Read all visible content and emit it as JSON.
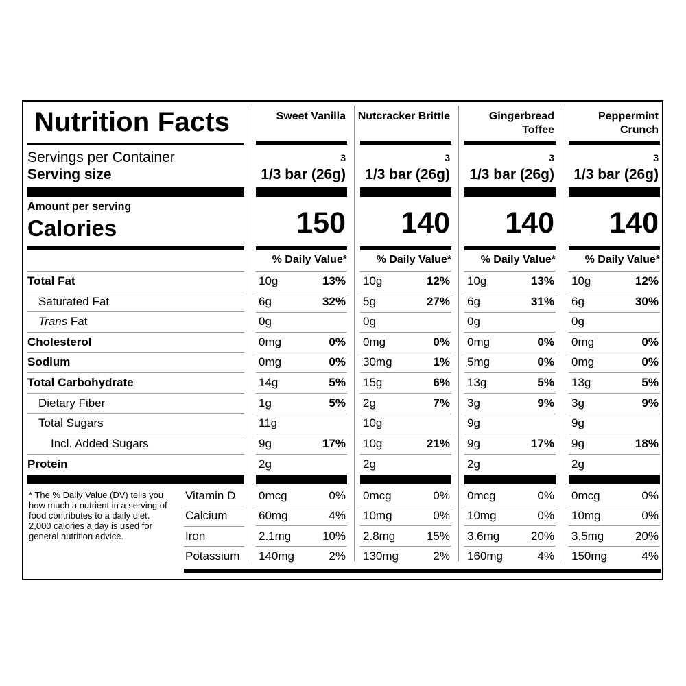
{
  "title": "Nutrition Facts",
  "servings_per_container_label": "Servings per Container",
  "serving_size_label": "Serving size",
  "amount_per_serving_label": "Amount per serving",
  "calories_label": "Calories",
  "daily_value_header": "% Daily Value*",
  "nutrient_labels": {
    "total_fat": "Total Fat",
    "saturated_fat": "Saturated Fat",
    "trans_fat_italic": "Trans",
    "trans_fat_rest": " Fat",
    "cholesterol": "Cholesterol",
    "sodium": "Sodium",
    "total_carbohydrate": "Total Carbohydrate",
    "dietary_fiber": "Dietary Fiber",
    "total_sugars": "Total Sugars",
    "added_sugars": "Incl. Added Sugars",
    "protein": "Protein"
  },
  "vitamin_labels": [
    "Vitamin D",
    "Calcium",
    "Iron",
    "Potassium"
  ],
  "footnote": "* The % Daily Value (DV) tells you how much a nutrient in a serving of food contributes to a daily diet. 2,000 calories a day is used for general nutrition advice.",
  "products": [
    {
      "name": "Sweet Vanilla",
      "servings": "3",
      "serving_size": "1/3 bar (26g)",
      "calories": "150",
      "total_fat": [
        "10g",
        "13%"
      ],
      "saturated_fat": [
        "6g",
        "32%"
      ],
      "trans_fat": [
        "0g",
        ""
      ],
      "cholesterol": [
        "0mg",
        "0%"
      ],
      "sodium": [
        "0mg",
        "0%"
      ],
      "total_carbohydrate": [
        "14g",
        "5%"
      ],
      "dietary_fiber": [
        "1g",
        "5%"
      ],
      "total_sugars": [
        "11g",
        ""
      ],
      "added_sugars": [
        "9g",
        "17%"
      ],
      "protein": [
        "2g",
        ""
      ],
      "vitamin_d": [
        "0mcg",
        "0%"
      ],
      "calcium": [
        "60mg",
        "4%"
      ],
      "iron": [
        "2.1mg",
        "10%"
      ],
      "potassium": [
        "140mg",
        "2%"
      ]
    },
    {
      "name": "Nutcracker Brittle",
      "servings": "3",
      "serving_size": "1/3 bar (26g)",
      "calories": "140",
      "total_fat": [
        "10g",
        "12%"
      ],
      "saturated_fat": [
        "5g",
        "27%"
      ],
      "trans_fat": [
        "0g",
        ""
      ],
      "cholesterol": [
        "0mg",
        "0%"
      ],
      "sodium": [
        "30mg",
        "1%"
      ],
      "total_carbohydrate": [
        "15g",
        "6%"
      ],
      "dietary_fiber": [
        "2g",
        "7%"
      ],
      "total_sugars": [
        "10g",
        ""
      ],
      "added_sugars": [
        "10g",
        "21%"
      ],
      "protein": [
        "2g",
        ""
      ],
      "vitamin_d": [
        "0mcg",
        "0%"
      ],
      "calcium": [
        "10mg",
        "0%"
      ],
      "iron": [
        "2.8mg",
        "15%"
      ],
      "potassium": [
        "130mg",
        "2%"
      ]
    },
    {
      "name": "Gingerbread Toffee",
      "servings": "3",
      "serving_size": "1/3 bar (26g)",
      "calories": "140",
      "total_fat": [
        "10g",
        "13%"
      ],
      "saturated_fat": [
        "6g",
        "31%"
      ],
      "trans_fat": [
        "0g",
        ""
      ],
      "cholesterol": [
        "0mg",
        "0%"
      ],
      "sodium": [
        "5mg",
        "0%"
      ],
      "total_carbohydrate": [
        "13g",
        "5%"
      ],
      "dietary_fiber": [
        "3g",
        "9%"
      ],
      "total_sugars": [
        "9g",
        ""
      ],
      "added_sugars": [
        "9g",
        "17%"
      ],
      "protein": [
        "2g",
        ""
      ],
      "vitamin_d": [
        "0mcg",
        "0%"
      ],
      "calcium": [
        "10mg",
        "0%"
      ],
      "iron": [
        "3.6mg",
        "20%"
      ],
      "potassium": [
        "160mg",
        "4%"
      ]
    },
    {
      "name": "Peppermint Crunch",
      "servings": "3",
      "serving_size": "1/3 bar (26g)",
      "calories": "140",
      "total_fat": [
        "10g",
        "12%"
      ],
      "saturated_fat": [
        "6g",
        "30%"
      ],
      "trans_fat": [
        "0g",
        ""
      ],
      "cholesterol": [
        "0mg",
        "0%"
      ],
      "sodium": [
        "0mg",
        "0%"
      ],
      "total_carbohydrate": [
        "13g",
        "5%"
      ],
      "dietary_fiber": [
        "3g",
        "9%"
      ],
      "total_sugars": [
        "9g",
        ""
      ],
      "added_sugars": [
        "9g",
        "18%"
      ],
      "protein": [
        "2g",
        ""
      ],
      "vitamin_d": [
        "0mcg",
        "0%"
      ],
      "calcium": [
        "10mg",
        "0%"
      ],
      "iron": [
        "3.5mg",
        "20%"
      ],
      "potassium": [
        "150mg",
        "4%"
      ]
    }
  ]
}
